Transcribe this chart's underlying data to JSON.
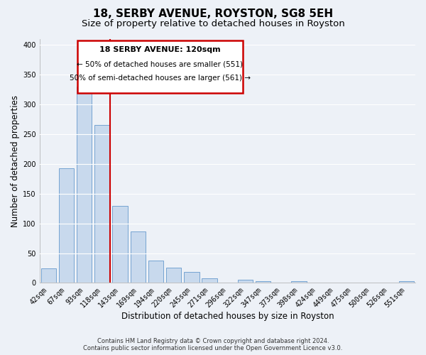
{
  "title": "18, SERBY AVENUE, ROYSTON, SG8 5EH",
  "subtitle": "Size of property relative to detached houses in Royston",
  "xlabel": "Distribution of detached houses by size in Royston",
  "ylabel": "Number of detached properties",
  "bar_labels": [
    "42sqm",
    "67sqm",
    "93sqm",
    "118sqm",
    "143sqm",
    "169sqm",
    "194sqm",
    "220sqm",
    "245sqm",
    "271sqm",
    "296sqm",
    "322sqm",
    "347sqm",
    "373sqm",
    "398sqm",
    "424sqm",
    "449sqm",
    "475sqm",
    "500sqm",
    "526sqm",
    "551sqm"
  ],
  "bar_values": [
    25,
    193,
    330,
    265,
    130,
    86,
    38,
    26,
    18,
    8,
    0,
    5,
    3,
    0,
    3,
    0,
    0,
    0,
    0,
    0,
    3
  ],
  "bar_color": "#c8d9ed",
  "bar_edge_color": "#6699cc",
  "vline_x_index": 3,
  "vline_color": "#cc0000",
  "annotation_line1": "18 SERBY AVENUE: 120sqm",
  "annotation_line2": "← 50% of detached houses are smaller (551)",
  "annotation_line3": "50% of semi-detached houses are larger (561) →",
  "annotation_box_color": "#cc0000",
  "annotation_fill_color": "#ffffff",
  "ylim": [
    0,
    410
  ],
  "yticks": [
    0,
    50,
    100,
    150,
    200,
    250,
    300,
    350,
    400
  ],
  "footnote1": "Contains HM Land Registry data © Crown copyright and database right 2024.",
  "footnote2": "Contains public sector information licensed under the Open Government Licence v3.0.",
  "bg_color": "#edf1f7",
  "plot_bg_color": "#edf1f7",
  "grid_color": "#ffffff",
  "title_fontsize": 11,
  "subtitle_fontsize": 9.5,
  "axis_label_fontsize": 8.5,
  "tick_fontsize": 7,
  "footnote_fontsize": 6
}
